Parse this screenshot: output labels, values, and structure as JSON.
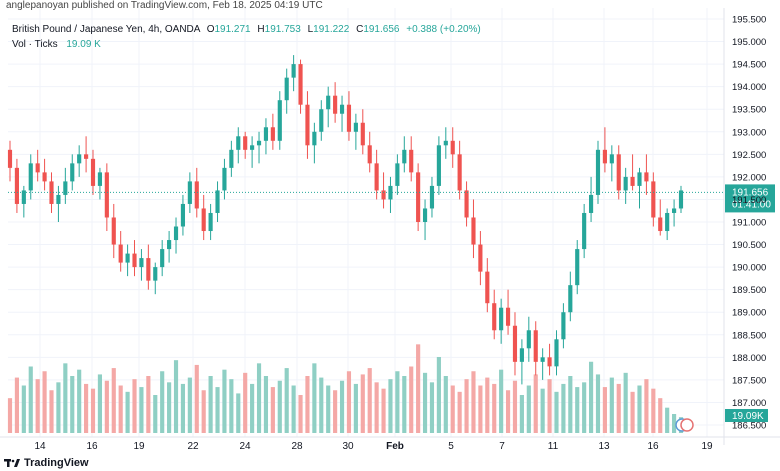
{
  "header": {
    "published": "anglepanoyan published on TradingView.com, Feb 18, 2025 04:19 UTC"
  },
  "legend": {
    "symbol": "British Pound / Japanese Yen, 4h, OANDA",
    "o_label": "O",
    "o": "191.271",
    "h_label": "H",
    "h": "191.753",
    "l_label": "L",
    "l": "191.222",
    "c_label": "C",
    "c": "191.656",
    "change": "+0.388 (+0.20%)",
    "vol_label": "Vol · Ticks",
    "vol_value": "19.09 K"
  },
  "footer": {
    "brand": "TradingView"
  },
  "colors": {
    "up": "#26a69a",
    "down": "#ef5350",
    "up_vol": "#8fcfc4",
    "down_vol": "#f4a8a6",
    "price_line": "#26a69a",
    "grid": "#f0f3fa"
  },
  "chart_data": {
    "type": "candlestick",
    "symbol": "GBPJPY",
    "timeframe": "4h",
    "y_axis": {
      "min": 186.5,
      "max": 195.5,
      "ticks": [
        "195.500",
        "195.000",
        "194.500",
        "194.000",
        "193.500",
        "193.000",
        "192.500",
        "192.000",
        "191.500",
        "191.000",
        "190.500",
        "190.000",
        "189.500",
        "189.000",
        "188.500",
        "188.000",
        "187.500",
        "187.000",
        "186.500"
      ]
    },
    "x_ticks": [
      "14",
      "16",
      "19",
      "22",
      "24",
      "28",
      "30",
      "Feb",
      "5",
      "7",
      "11",
      "13",
      "16",
      "19"
    ],
    "last_price": "191.656",
    "countdown": "01:41:00",
    "last_volume": "19.09K",
    "candles": [
      [
        192.6,
        192.8,
        191.9,
        192.2
      ],
      [
        192.2,
        192.4,
        191.2,
        191.4
      ],
      [
        191.4,
        191.8,
        191.1,
        191.7
      ],
      [
        191.7,
        192.5,
        191.5,
        192.3
      ],
      [
        192.3,
        192.6,
        191.9,
        192.1
      ],
      [
        192.1,
        192.4,
        191.7,
        191.9
      ],
      [
        191.9,
        192.1,
        191.2,
        191.4
      ],
      [
        191.4,
        191.8,
        191.0,
        191.6
      ],
      [
        191.6,
        192.2,
        191.4,
        191.9
      ],
      [
        191.9,
        192.5,
        191.7,
        192.3
      ],
      [
        192.3,
        192.7,
        192.0,
        192.5
      ],
      [
        192.5,
        192.9,
        192.1,
        192.4
      ],
      [
        192.4,
        192.6,
        191.6,
        191.8
      ],
      [
        191.8,
        192.2,
        191.5,
        192.1
      ],
      [
        192.1,
        192.3,
        190.8,
        191.1
      ],
      [
        191.1,
        191.4,
        190.2,
        190.5
      ],
      [
        190.5,
        190.8,
        189.9,
        190.1
      ],
      [
        190.1,
        190.5,
        189.8,
        190.3
      ],
      [
        190.3,
        190.6,
        189.8,
        190.0
      ],
      [
        190.0,
        190.4,
        189.7,
        190.2
      ],
      [
        190.2,
        190.5,
        189.5,
        189.7
      ],
      [
        189.7,
        190.1,
        189.4,
        190.0
      ],
      [
        190.0,
        190.6,
        189.8,
        190.4
      ],
      [
        190.4,
        190.8,
        190.1,
        190.6
      ],
      [
        190.6,
        191.1,
        190.3,
        190.9
      ],
      [
        190.9,
        191.6,
        190.7,
        191.4
      ],
      [
        191.4,
        192.1,
        191.2,
        191.9
      ],
      [
        191.9,
        192.2,
        191.1,
        191.3
      ],
      [
        191.3,
        191.6,
        190.6,
        190.8
      ],
      [
        190.8,
        191.4,
        190.6,
        191.2
      ],
      [
        191.2,
        191.9,
        191.0,
        191.7
      ],
      [
        191.7,
        192.4,
        191.5,
        192.2
      ],
      [
        192.2,
        192.8,
        192.0,
        192.6
      ],
      [
        192.6,
        193.1,
        192.3,
        192.9
      ],
      [
        192.9,
        193.0,
        192.4,
        192.6
      ],
      [
        192.6,
        192.9,
        192.2,
        192.7
      ],
      [
        192.7,
        193.0,
        192.3,
        192.8
      ],
      [
        192.8,
        193.3,
        192.5,
        193.1
      ],
      [
        193.1,
        193.4,
        192.6,
        192.8
      ],
      [
        192.8,
        193.9,
        192.6,
        193.7
      ],
      [
        193.7,
        194.4,
        193.4,
        194.2
      ],
      [
        194.2,
        194.7,
        193.9,
        194.5
      ],
      [
        194.5,
        194.6,
        193.4,
        193.6
      ],
      [
        193.6,
        193.9,
        192.4,
        192.7
      ],
      [
        192.7,
        193.2,
        192.3,
        193.0
      ],
      [
        193.0,
        193.7,
        192.8,
        193.5
      ],
      [
        193.5,
        194.0,
        193.1,
        193.8
      ],
      [
        193.8,
        194.1,
        193.2,
        193.4
      ],
      [
        193.4,
        193.8,
        193.0,
        193.6
      ],
      [
        193.6,
        193.9,
        192.8,
        193.0
      ],
      [
        193.0,
        193.4,
        192.6,
        193.2
      ],
      [
        193.2,
        193.5,
        192.5,
        192.7
      ],
      [
        192.7,
        193.0,
        192.1,
        192.3
      ],
      [
        192.3,
        192.6,
        191.5,
        191.7
      ],
      [
        191.7,
        192.1,
        191.3,
        191.5
      ],
      [
        191.5,
        192.0,
        191.2,
        191.8
      ],
      [
        191.8,
        192.5,
        191.6,
        192.3
      ],
      [
        192.3,
        192.9,
        192.1,
        192.6
      ],
      [
        192.6,
        192.9,
        191.9,
        192.1
      ],
      [
        192.1,
        192.3,
        190.8,
        191.0
      ],
      [
        191.0,
        191.5,
        190.6,
        191.3
      ],
      [
        191.3,
        192.0,
        191.1,
        191.8
      ],
      [
        191.8,
        192.9,
        191.6,
        192.7
      ],
      [
        192.7,
        193.1,
        192.4,
        192.8
      ],
      [
        192.8,
        193.1,
        192.2,
        192.5
      ],
      [
        192.5,
        192.8,
        191.5,
        191.7
      ],
      [
        191.7,
        191.9,
        190.9,
        191.1
      ],
      [
        191.1,
        191.5,
        190.2,
        190.5
      ],
      [
        190.5,
        190.8,
        189.6,
        189.9
      ],
      [
        189.9,
        190.2,
        189.0,
        189.2
      ],
      [
        189.2,
        189.5,
        188.4,
        188.6
      ],
      [
        188.6,
        189.3,
        188.3,
        189.1
      ],
      [
        189.1,
        189.5,
        188.5,
        188.7
      ],
      [
        188.7,
        189.0,
        187.6,
        187.9
      ],
      [
        187.9,
        188.4,
        187.4,
        188.2
      ],
      [
        188.2,
        188.9,
        187.9,
        188.6
      ],
      [
        188.6,
        188.8,
        187.6,
        187.9
      ],
      [
        187.9,
        188.2,
        187.5,
        188.0
      ],
      [
        188.0,
        188.3,
        187.6,
        187.8
      ],
      [
        187.8,
        188.6,
        187.6,
        188.4
      ],
      [
        188.4,
        189.2,
        188.2,
        189.0
      ],
      [
        189.0,
        189.9,
        188.8,
        189.6
      ],
      [
        189.6,
        190.6,
        189.4,
        190.4
      ],
      [
        190.4,
        191.4,
        190.2,
        191.2
      ],
      [
        191.2,
        192.0,
        191.0,
        191.6
      ],
      [
        191.6,
        192.8,
        191.4,
        192.6
      ],
      [
        192.6,
        193.1,
        192.1,
        192.3
      ],
      [
        192.3,
        192.7,
        191.9,
        192.5
      ],
      [
        192.5,
        192.7,
        191.5,
        191.7
      ],
      [
        191.7,
        192.2,
        191.4,
        192.0
      ],
      [
        192.0,
        192.5,
        191.7,
        191.8
      ],
      [
        191.8,
        192.2,
        191.3,
        192.1
      ],
      [
        192.1,
        192.5,
        191.6,
        191.9
      ],
      [
        191.9,
        192.1,
        190.9,
        191.1
      ],
      [
        191.1,
        191.5,
        190.7,
        190.8
      ],
      [
        190.8,
        191.3,
        190.6,
        191.2
      ],
      [
        191.2,
        191.5,
        190.9,
        191.3
      ],
      [
        191.3,
        191.8,
        191.2,
        191.7
      ]
    ],
    "volumes": [
      2.2,
      3.5,
      3.0,
      4.2,
      3.4,
      3.9,
      2.7,
      3.2,
      4.4,
      3.6,
      4.0,
      3.1,
      2.8,
      3.7,
      3.3,
      4.1,
      3.0,
      2.6,
      3.4,
      2.9,
      3.6,
      2.4,
      3.9,
      3.2,
      4.6,
      3.1,
      3.5,
      4.3,
      2.7,
      3.6,
      2.9,
      4.0,
      3.4,
      2.5,
      3.8,
      3.1,
      4.4,
      3.6,
      2.9,
      3.3,
      4.1,
      3.0,
      2.4,
      3.6,
      4.4,
      3.5,
      3.0,
      2.7,
      3.3,
      3.9,
      3.1,
      3.7,
      4.1,
      3.2,
      2.8,
      3.4,
      3.9,
      3.6,
      4.2,
      5.6,
      3.8,
      3.2,
      4.8,
      3.6,
      3.0,
      2.6,
      3.4,
      3.9,
      3.0,
      3.5,
      3.1,
      4.0,
      2.7,
      3.3,
      2.4,
      3.0,
      3.7,
      2.8,
      3.4,
      2.6,
      3.1,
      3.6,
      2.9,
      3.2,
      4.5,
      3.7,
      2.9,
      3.5,
      3.1,
      3.8,
      2.6,
      3.0,
      3.4,
      2.8,
      2.2,
      1.6,
      1.2,
      1.0
    ]
  }
}
